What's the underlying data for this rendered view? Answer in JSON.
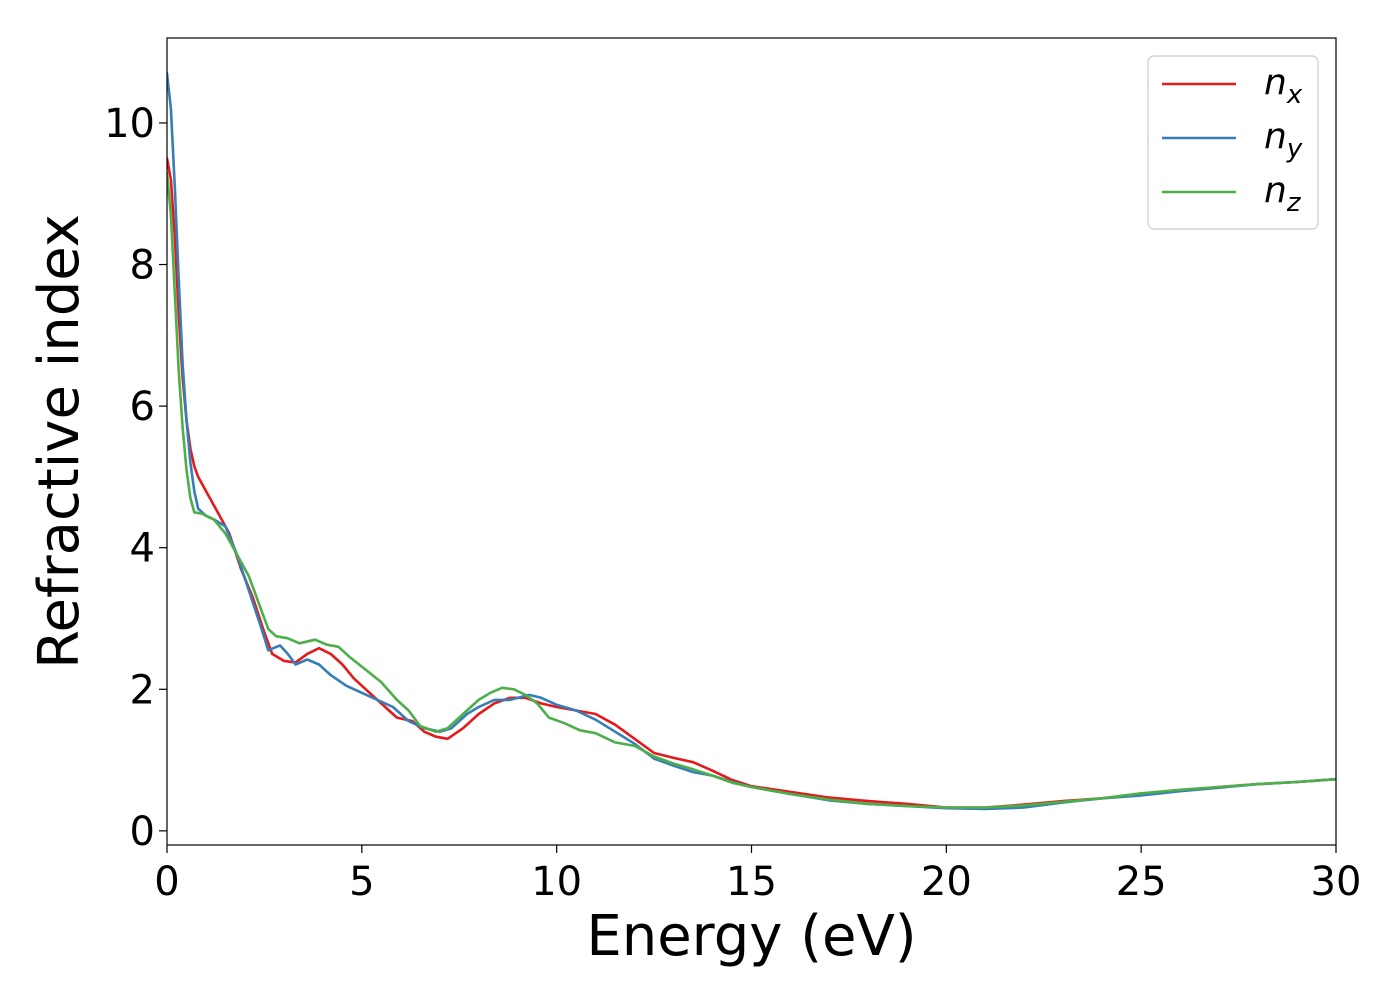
{
  "chart_data": {
    "type": "line",
    "title": "",
    "xlabel": "Energy (eV)",
    "ylabel": "Refractive index",
    "xlim": [
      0,
      30
    ],
    "ylim": [
      -0.2,
      11.2
    ],
    "xticks": [
      0,
      5,
      10,
      15,
      20,
      25,
      30
    ],
    "yticks": [
      0,
      2,
      4,
      6,
      8,
      10
    ],
    "grid": false,
    "legend_position": "top-right",
    "series": [
      {
        "name": "n",
        "subscript": "x",
        "color": "#e41a1c",
        "points": [
          [
            0,
            9.5
          ],
          [
            0.1,
            9.2
          ],
          [
            0.2,
            8.4
          ],
          [
            0.3,
            7.3
          ],
          [
            0.4,
            6.4
          ],
          [
            0.5,
            5.8
          ],
          [
            0.6,
            5.4
          ],
          [
            0.7,
            5.15
          ],
          [
            0.8,
            5.0
          ],
          [
            1.0,
            4.8
          ],
          [
            1.3,
            4.5
          ],
          [
            1.6,
            4.2
          ],
          [
            1.9,
            3.7
          ],
          [
            2.2,
            3.3
          ],
          [
            2.5,
            2.8
          ],
          [
            2.7,
            2.5
          ],
          [
            3.0,
            2.4
          ],
          [
            3.3,
            2.38
          ],
          [
            3.6,
            2.5
          ],
          [
            3.9,
            2.58
          ],
          [
            4.2,
            2.5
          ],
          [
            4.5,
            2.35
          ],
          [
            4.8,
            2.15
          ],
          [
            5.2,
            1.95
          ],
          [
            5.6,
            1.75
          ],
          [
            5.9,
            1.6
          ],
          [
            6.3,
            1.55
          ],
          [
            6.6,
            1.4
          ],
          [
            6.9,
            1.33
          ],
          [
            7.2,
            1.3
          ],
          [
            7.6,
            1.45
          ],
          [
            8.0,
            1.65
          ],
          [
            8.4,
            1.8
          ],
          [
            8.8,
            1.88
          ],
          [
            9.2,
            1.88
          ],
          [
            9.6,
            1.8
          ],
          [
            10.0,
            1.75
          ],
          [
            10.5,
            1.7
          ],
          [
            11.0,
            1.65
          ],
          [
            11.5,
            1.5
          ],
          [
            12.0,
            1.3
          ],
          [
            12.5,
            1.1
          ],
          [
            13.0,
            1.03
          ],
          [
            13.5,
            0.97
          ],
          [
            14.0,
            0.85
          ],
          [
            14.5,
            0.72
          ],
          [
            15.0,
            0.63
          ],
          [
            16.0,
            0.55
          ],
          [
            17.0,
            0.47
          ],
          [
            18.0,
            0.42
          ],
          [
            19.0,
            0.38
          ],
          [
            20.0,
            0.33
          ],
          [
            21.0,
            0.33
          ],
          [
            22.0,
            0.37
          ],
          [
            23.0,
            0.42
          ],
          [
            24.0,
            0.46
          ],
          [
            25.0,
            0.52
          ],
          [
            26.0,
            0.57
          ],
          [
            27.0,
            0.62
          ],
          [
            28.0,
            0.66
          ],
          [
            29.0,
            0.69
          ],
          [
            30.0,
            0.73
          ]
        ]
      },
      {
        "name": "n",
        "subscript": "y",
        "color": "#377eb8",
        "points": [
          [
            0,
            10.7
          ],
          [
            0.1,
            10.2
          ],
          [
            0.2,
            9.1
          ],
          [
            0.3,
            7.8
          ],
          [
            0.4,
            6.6
          ],
          [
            0.5,
            5.8
          ],
          [
            0.6,
            5.2
          ],
          [
            0.7,
            4.8
          ],
          [
            0.8,
            4.55
          ],
          [
            1.0,
            4.45
          ],
          [
            1.2,
            4.4
          ],
          [
            1.5,
            4.3
          ],
          [
            1.8,
            3.9
          ],
          [
            2.1,
            3.4
          ],
          [
            2.4,
            2.9
          ],
          [
            2.6,
            2.55
          ],
          [
            2.9,
            2.62
          ],
          [
            3.1,
            2.5
          ],
          [
            3.3,
            2.35
          ],
          [
            3.6,
            2.42
          ],
          [
            3.9,
            2.35
          ],
          [
            4.2,
            2.2
          ],
          [
            4.6,
            2.05
          ],
          [
            5.0,
            1.95
          ],
          [
            5.4,
            1.85
          ],
          [
            5.8,
            1.75
          ],
          [
            6.2,
            1.55
          ],
          [
            6.6,
            1.45
          ],
          [
            7.0,
            1.4
          ],
          [
            7.3,
            1.45
          ],
          [
            7.7,
            1.65
          ],
          [
            8.0,
            1.75
          ],
          [
            8.4,
            1.85
          ],
          [
            8.8,
            1.85
          ],
          [
            9.3,
            1.92
          ],
          [
            9.6,
            1.88
          ],
          [
            10.0,
            1.78
          ],
          [
            10.5,
            1.7
          ],
          [
            11.0,
            1.57
          ],
          [
            11.5,
            1.4
          ],
          [
            12.0,
            1.23
          ],
          [
            12.5,
            1.02
          ],
          [
            13.0,
            0.92
          ],
          [
            13.5,
            0.83
          ],
          [
            14.0,
            0.78
          ],
          [
            14.5,
            0.69
          ],
          [
            15.0,
            0.62
          ],
          [
            16.0,
            0.52
          ],
          [
            17.0,
            0.43
          ],
          [
            18.0,
            0.38
          ],
          [
            19.0,
            0.35
          ],
          [
            20.0,
            0.32
          ],
          [
            21.0,
            0.31
          ],
          [
            22.0,
            0.33
          ],
          [
            23.0,
            0.4
          ],
          [
            24.0,
            0.46
          ],
          [
            25.0,
            0.5
          ],
          [
            26.0,
            0.56
          ],
          [
            27.0,
            0.61
          ],
          [
            28.0,
            0.66
          ],
          [
            29.0,
            0.69
          ],
          [
            30.0,
            0.73
          ]
        ]
      },
      {
        "name": "n",
        "subscript": "z",
        "color": "#4daf4a",
        "points": [
          [
            0,
            9.3
          ],
          [
            0.1,
            8.7
          ],
          [
            0.2,
            7.6
          ],
          [
            0.3,
            6.5
          ],
          [
            0.4,
            5.7
          ],
          [
            0.5,
            5.1
          ],
          [
            0.6,
            4.7
          ],
          [
            0.7,
            4.5
          ],
          [
            0.9,
            4.48
          ],
          [
            1.2,
            4.4
          ],
          [
            1.5,
            4.2
          ],
          [
            1.8,
            3.9
          ],
          [
            2.1,
            3.6
          ],
          [
            2.4,
            3.15
          ],
          [
            2.6,
            2.85
          ],
          [
            2.8,
            2.75
          ],
          [
            3.1,
            2.72
          ],
          [
            3.4,
            2.65
          ],
          [
            3.8,
            2.7
          ],
          [
            4.1,
            2.63
          ],
          [
            4.4,
            2.6
          ],
          [
            4.7,
            2.45
          ],
          [
            5.0,
            2.32
          ],
          [
            5.5,
            2.1
          ],
          [
            5.9,
            1.85
          ],
          [
            6.2,
            1.7
          ],
          [
            6.5,
            1.48
          ],
          [
            6.9,
            1.4
          ],
          [
            7.2,
            1.45
          ],
          [
            7.6,
            1.65
          ],
          [
            8.0,
            1.85
          ],
          [
            8.3,
            1.95
          ],
          [
            8.6,
            2.02
          ],
          [
            8.9,
            2.0
          ],
          [
            9.2,
            1.92
          ],
          [
            9.5,
            1.8
          ],
          [
            9.8,
            1.6
          ],
          [
            10.2,
            1.52
          ],
          [
            10.6,
            1.42
          ],
          [
            11.0,
            1.38
          ],
          [
            11.5,
            1.25
          ],
          [
            12.0,
            1.2
          ],
          [
            12.5,
            1.05
          ],
          [
            13.0,
            0.95
          ],
          [
            13.5,
            0.87
          ],
          [
            14.0,
            0.78
          ],
          [
            14.5,
            0.68
          ],
          [
            15.0,
            0.62
          ],
          [
            16.0,
            0.52
          ],
          [
            17.0,
            0.44
          ],
          [
            18.0,
            0.38
          ],
          [
            19.0,
            0.35
          ],
          [
            20.0,
            0.33
          ],
          [
            21.0,
            0.33
          ],
          [
            22.0,
            0.36
          ],
          [
            23.0,
            0.41
          ],
          [
            24.0,
            0.46
          ],
          [
            25.0,
            0.53
          ],
          [
            26.0,
            0.58
          ],
          [
            27.0,
            0.62
          ],
          [
            28.0,
            0.66
          ],
          [
            29.0,
            0.69
          ],
          [
            30.0,
            0.73
          ]
        ]
      }
    ]
  }
}
